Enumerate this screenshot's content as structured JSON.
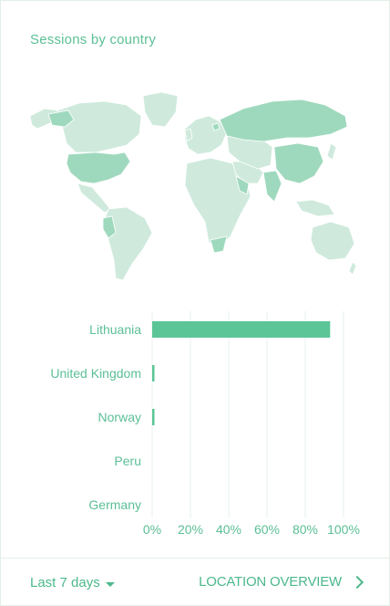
{
  "card": {
    "title": "Sessions by country"
  },
  "map": {
    "land_color": "#cfeadd",
    "highlight_color": "#9fd9bd",
    "border_color": "#ffffff"
  },
  "chart_data": {
    "type": "bar",
    "orientation": "horizontal",
    "categories": [
      "Lithuania",
      "United Kingdom",
      "Norway",
      "Peru",
      "Germany"
    ],
    "values": [
      93,
      1,
      0.7,
      0,
      0
    ],
    "xlim": [
      0,
      100
    ],
    "xticks": [
      "0%",
      "20%",
      "40%",
      "60%",
      "80%",
      "100%"
    ],
    "grid": true,
    "bar_color": "#5bc597",
    "label_color": "#5bbf96"
  },
  "footer": {
    "range_label": "Last 7 days",
    "overview_label": "LOCATION OVERVIEW"
  }
}
